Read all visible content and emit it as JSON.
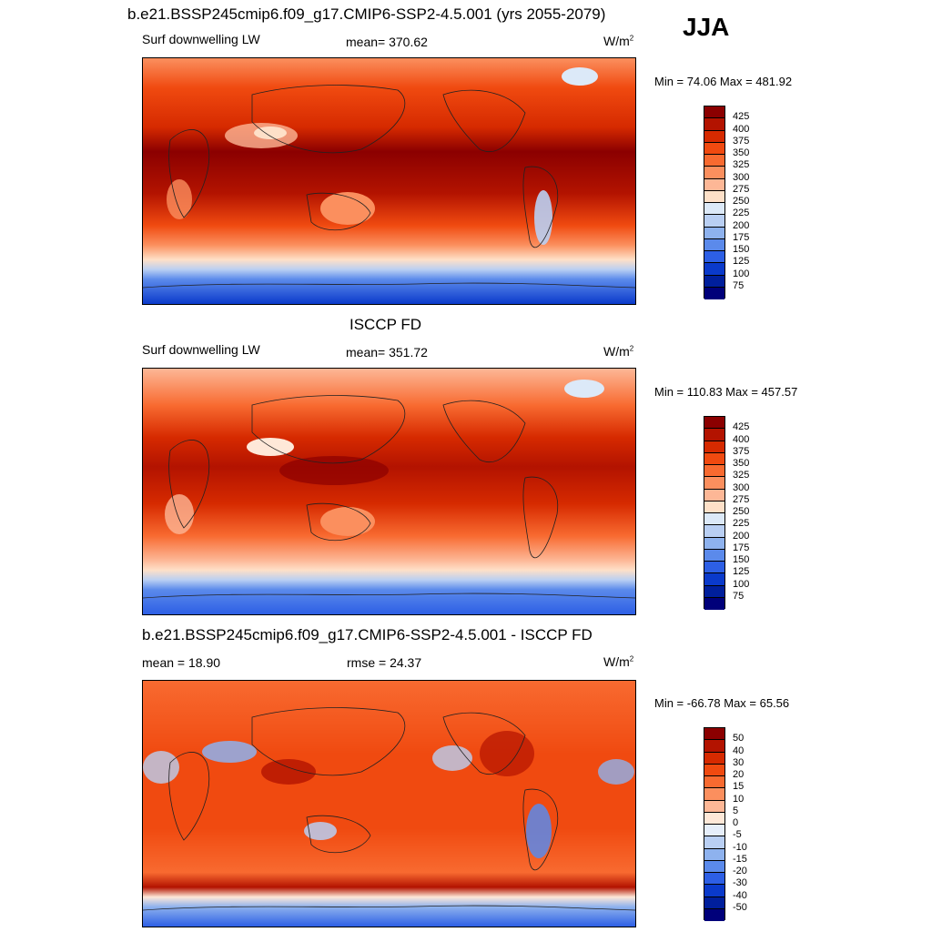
{
  "season": "JJA",
  "panels": [
    {
      "title": "b.e21.BSSP245cmip6.f09_g17.CMIP6-SSP2-4.5.001 (yrs 2055-2079)",
      "left_label": "Surf downwelling LW",
      "center_label": "mean= 370.62",
      "units": "W/m",
      "units_sup": "2",
      "minmax": "Min =  74.06 Max = 481.92",
      "colorbar_labels": [
        "425",
        "400",
        "375",
        "350",
        "325",
        "300",
        "275",
        "250",
        "225",
        "200",
        "175",
        "150",
        "125",
        "100",
        "75"
      ],
      "colorbar_colors": [
        "#8b0000",
        "#b31300",
        "#d62a00",
        "#f04a10",
        "#f86a30",
        "#fb8f5e",
        "#fdb796",
        "#fee0c8",
        "#dce9f8",
        "#b9cff3",
        "#8eb2ee",
        "#5b8aeb",
        "#2d5fe5",
        "#0a3acb",
        "#001f9c",
        "#00007a"
      ]
    },
    {
      "title": "ISCCP FD",
      "left_label": "Surf downwelling LW",
      "center_label": "mean= 351.72",
      "units": "W/m",
      "units_sup": "2",
      "minmax": "Min = 110.83 Max = 457.57",
      "colorbar_labels": [
        "425",
        "400",
        "375",
        "350",
        "325",
        "300",
        "275",
        "250",
        "225",
        "200",
        "175",
        "150",
        "125",
        "100",
        "75"
      ],
      "colorbar_colors": [
        "#8b0000",
        "#b31300",
        "#d62a00",
        "#f04a10",
        "#f86a30",
        "#fb8f5e",
        "#fdb796",
        "#fee0c8",
        "#dce9f8",
        "#b9cff3",
        "#8eb2ee",
        "#5b8aeb",
        "#2d5fe5",
        "#0a3acb",
        "#001f9c",
        "#00007a"
      ]
    },
    {
      "title": "b.e21.BSSP245cmip6.f09_g17.CMIP6-SSP2-4.5.001 - ISCCP FD",
      "left_label": "mean =  18.90",
      "center_label": "rmse =  24.37",
      "units": "W/m",
      "units_sup": "2",
      "minmax": "Min = -66.78 Max =  65.56",
      "colorbar_labels": [
        "50",
        "40",
        "30",
        "20",
        "15",
        "10",
        "5",
        "0",
        "-5",
        "-10",
        "-15",
        "-20",
        "-30",
        "-40",
        "-50"
      ],
      "colorbar_colors": [
        "#8b0000",
        "#b31300",
        "#d62a00",
        "#f04a10",
        "#f86a30",
        "#fb8f5e",
        "#fdb796",
        "#fee8d8",
        "#e6eefa",
        "#b9cff3",
        "#8eb2ee",
        "#5b8aeb",
        "#2d5fe5",
        "#0a3acb",
        "#001f9c",
        "#00007a"
      ]
    }
  ]
}
